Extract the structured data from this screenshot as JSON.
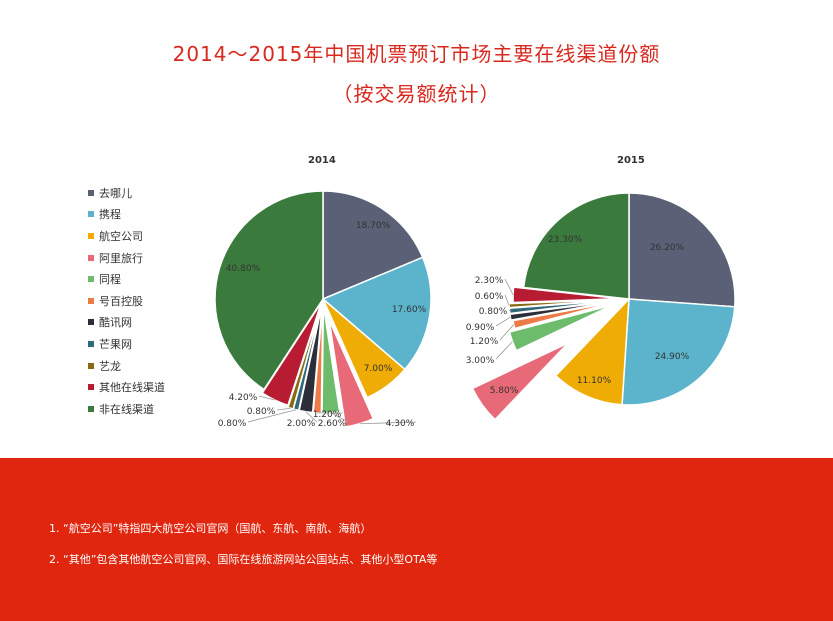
{
  "title_line1": "2014～2015年中国机票预订市场主要在线渠道份额",
  "title_line2": "（按交易额统计）",
  "legend": [
    {
      "name": "去哪儿",
      "color": "#5a6075"
    },
    {
      "name": "携程",
      "color": "#5cb4cc"
    },
    {
      "name": "航空公司",
      "color": "#efac05"
    },
    {
      "name": "阿里旅行",
      "color": "#e86a78"
    },
    {
      "name": "同程",
      "color": "#6cbc6c"
    },
    {
      "name": "号百控股",
      "color": "#ed7b48"
    },
    {
      "name": "酷讯网",
      "color": "#2c2f3a"
    },
    {
      "name": "芒果网",
      "color": "#33687a"
    },
    {
      "name": "艺龙",
      "color": "#8a6a10"
    },
    {
      "name": "其他在线渠道",
      "color": "#b81c33"
    },
    {
      "name": "非在线渠道",
      "color": "#3b7a3d"
    }
  ],
  "chart_data": [
    {
      "type": "pie",
      "title": "2014",
      "categories": [
        "去哪儿",
        "携程",
        "航空公司",
        "阿里旅行",
        "同程",
        "号百控股",
        "酷讯网",
        "芒果网",
        "艺龙",
        "其他在线渠道",
        "非在线渠道"
      ],
      "values": [
        18.7,
        17.6,
        7.0,
        4.3,
        2.6,
        1.2,
        2.0,
        0.8,
        0.8,
        4.2,
        40.8
      ],
      "labels": [
        "18.70%",
        "17.60%",
        "7.00%",
        "4.30%",
        "2.60%",
        "1.20%",
        "2.00%",
        "0.80%",
        "0.80%",
        "4.20%",
        "40.80%"
      ]
    },
    {
      "type": "pie",
      "title": "2015",
      "categories": [
        "去哪儿",
        "携程",
        "航空公司",
        "阿里旅行",
        "同程",
        "号百控股",
        "酷讯网",
        "芒果网",
        "艺龙",
        "其他在线渠道",
        "非在线渠道"
      ],
      "values": [
        26.2,
        24.9,
        11.1,
        5.8,
        3.0,
        1.2,
        0.9,
        0.8,
        0.6,
        2.3,
        23.3
      ],
      "labels": [
        "26.20%",
        "24.90%",
        "11.10%",
        "5.80%",
        "3.00%",
        "1.20%",
        "0.90%",
        "0.80%",
        "0.60%",
        "2.30%",
        "23.30%"
      ]
    }
  ],
  "notes": [
    "1. “航空公司”特指四大航空公司官网（国航、东航、南航、海航）",
    "2. “其他”包含其他航空公司官网、国际在线旅游网站公国站点、其他小型OTA等"
  ]
}
